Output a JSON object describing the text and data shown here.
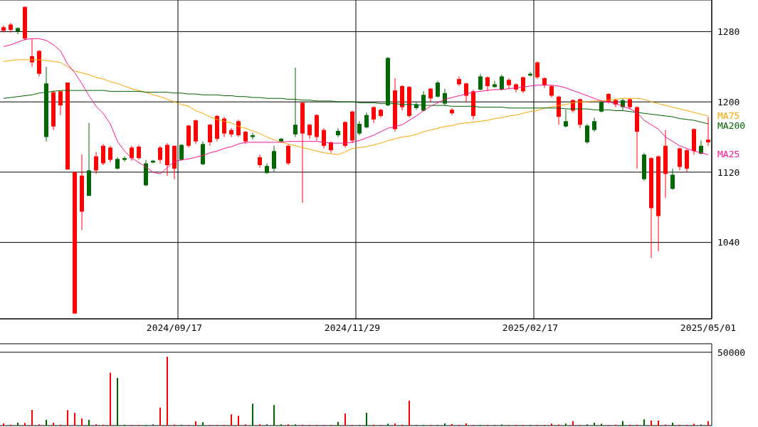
{
  "chart_data": [
    {
      "type": "candlestick",
      "categories": [
        null,
        null,
        null,
        null,
        null,
        null,
        null,
        null,
        null,
        null,
        null,
        null,
        null,
        null,
        null,
        null,
        null,
        null,
        null,
        null,
        null,
        null,
        null,
        null,
        "2024/09/17",
        null,
        null,
        null,
        null,
        null,
        null,
        null,
        null,
        null,
        null,
        null,
        null,
        null,
        null,
        null,
        null,
        null,
        null,
        null,
        null,
        null,
        null,
        null,
        null,
        "2024/11/29",
        null,
        null,
        null,
        null,
        null,
        null,
        null,
        null,
        null,
        null,
        null,
        null,
        null,
        null,
        null,
        null,
        null,
        null,
        null,
        null,
        null,
        null,
        null,
        null,
        "2025/02/17",
        null,
        null,
        null,
        null,
        null,
        null,
        null,
        null,
        null,
        null,
        null,
        null,
        null,
        null,
        null,
        null,
        null,
        null,
        null,
        null,
        null,
        null,
        null,
        null,
        "2025/05/01"
      ],
      "ohlc": [
        [
          1281,
          1287,
          1279,
          1285
        ],
        [
          1282,
          1290,
          1279,
          1288
        ],
        [
          1284,
          1285,
          1277,
          1280
        ],
        [
          1272,
          1309,
          1270,
          1308
        ],
        [
          1245,
          1272,
          1240,
          1252
        ],
        [
          1232,
          1259,
          1229,
          1258
        ],
        [
          1221,
          1240,
          1155,
          1160
        ],
        [
          1172,
          1213,
          1168,
          1211
        ],
        [
          1196,
          1213,
          1185,
          1212
        ],
        [
          1123,
          1222,
          1123,
          1222
        ],
        [
          959,
          1120,
          959,
          1120
        ],
        [
          1075,
          1140,
          1054,
          1116
        ],
        [
          1122,
          1176,
          1093,
          1093
        ],
        [
          1122,
          1143,
          1118,
          1138
        ],
        [
          1130,
          1152,
          1128,
          1150
        ],
        [
          1134,
          1150,
          1131,
          1148
        ],
        [
          1135,
          1137,
          1123,
          1124
        ],
        [
          1136,
          1138,
          1132,
          1134
        ],
        [
          1136,
          1150,
          1133,
          1148
        ],
        [
          1136,
          1151,
          1134,
          1149
        ],
        [
          1130,
          1134,
          1104,
          1105
        ],
        [
          1133,
          1134,
          1130,
          1131
        ],
        [
          1134,
          1150,
          1130,
          1148
        ],
        [
          1128,
          1153,
          1116,
          1151
        ],
        [
          1124,
          1150,
          1112,
          1150
        ],
        [
          1151,
          1152,
          1133,
          1134
        ],
        [
          1150,
          1174,
          1148,
          1173
        ],
        [
          1155,
          1180,
          1152,
          1179
        ],
        [
          1152,
          1155,
          1128,
          1129
        ],
        [
          1154,
          1175,
          1150,
          1174
        ],
        [
          1158,
          1185,
          1155,
          1184
        ],
        [
          1164,
          1183,
          1160,
          1181
        ],
        [
          1163,
          1170,
          1160,
          1168
        ],
        [
          1162,
          1180,
          1160,
          1178
        ],
        [
          1155,
          1167,
          1152,
          1166
        ],
        [
          1162,
          1165,
          1157,
          1160
        ],
        [
          1128,
          1140,
          1125,
          1137
        ],
        [
          1127,
          1130,
          1118,
          1119
        ],
        [
          1144,
          1150,
          1120,
          1124
        ],
        [
          1158,
          1159,
          1154,
          1155
        ],
        [
          1130,
          1152,
          1128,
          1150
        ],
        [
          1174,
          1239,
          1160,
          1163
        ],
        [
          1164,
          1200,
          1085,
          1199
        ],
        [
          1162,
          1175,
          1158,
          1174
        ],
        [
          1160,
          1186,
          1156,
          1185
        ],
        [
          1150,
          1170,
          1147,
          1168
        ],
        [
          1145,
          1155,
          1142,
          1154
        ],
        [
          1167,
          1170,
          1160,
          1162
        ],
        [
          1150,
          1178,
          1148,
          1177
        ],
        [
          1156,
          1190,
          1153,
          1189
        ],
        [
          1175,
          1178,
          1162,
          1164
        ],
        [
          1185,
          1188,
          1170,
          1171
        ],
        [
          1180,
          1195,
          1176,
          1194
        ],
        [
          1184,
          1192,
          1182,
          1191
        ],
        [
          1250,
          1251,
          1195,
          1196
        ],
        [
          1169,
          1227,
          1166,
          1213
        ],
        [
          1194,
          1219,
          1190,
          1218
        ],
        [
          1184,
          1218,
          1182,
          1217
        ],
        [
          1197,
          1200,
          1191,
          1193
        ],
        [
          1208,
          1212,
          1189,
          1190
        ],
        [
          1204,
          1216,
          1200,
          1215
        ],
        [
          1222,
          1224,
          1205,
          1206
        ],
        [
          1210,
          1215,
          1196,
          1198
        ],
        [
          1187,
          1193,
          1185,
          1191
        ],
        [
          1220,
          1229,
          1218,
          1226
        ],
        [
          1207,
          1222,
          1200,
          1221
        ],
        [
          1184,
          1214,
          1180,
          1212
        ],
        [
          1229,
          1232,
          1213,
          1214
        ],
        [
          1218,
          1229,
          1212,
          1228
        ],
        [
          1220,
          1224,
          1216,
          1217
        ],
        [
          1229,
          1231,
          1213,
          1214
        ],
        [
          1219,
          1227,
          1215,
          1225
        ],
        [
          1214,
          1221,
          1211,
          1220
        ],
        [
          1212,
          1229,
          1210,
          1228
        ],
        [
          1232,
          1234,
          1229,
          1230
        ],
        [
          1228,
          1246,
          1226,
          1245
        ],
        [
          1219,
          1228,
          1216,
          1227
        ],
        [
          1207,
          1219,
          1205,
          1218
        ],
        [
          1183,
          1207,
          1174,
          1206
        ],
        [
          1178,
          1191,
          1171,
          1172
        ],
        [
          1190,
          1203,
          1188,
          1202
        ],
        [
          1174,
          1204,
          1170,
          1203
        ],
        [
          1173,
          1175,
          1152,
          1154
        ],
        [
          1178,
          1182,
          1166,
          1168
        ],
        [
          1200,
          1202,
          1188,
          1189
        ],
        [
          1200,
          1210,
          1198,
          1209
        ],
        [
          1197,
          1204,
          1194,
          1202
        ],
        [
          1202,
          1204,
          1190,
          1194
        ],
        [
          1194,
          1204,
          1192,
          1203
        ],
        [
          1166,
          1195,
          1124,
          1194
        ],
        [
          1140,
          1142,
          1110,
          1112
        ],
        [
          1079,
          1137,
          1022,
          1136
        ],
        [
          1070,
          1139,
          1030,
          1138
        ],
        [
          1118,
          1168,
          1091,
          1150
        ],
        [
          1117,
          1124,
          1100,
          1101
        ],
        [
          1126,
          1148,
          1122,
          1147
        ],
        [
          1124,
          1146,
          1120,
          1145
        ],
        [
          1144,
          1170,
          1140,
          1169
        ],
        [
          1150,
          1156,
          1140,
          1141
        ],
        [
          1154,
          1183,
          1150,
          1157
        ]
      ],
      "colors": [
        "#ff0000",
        "#ff0000",
        "#006600",
        "#ff0000",
        "#ff0000",
        "#ff0000",
        "#006600",
        "#ff0000",
        "#ff0000",
        "#ff0000",
        "#ff0000",
        "#ff0000",
        "#006600",
        "#ff0000",
        "#ff0000",
        "#ff0000",
        "#006600",
        "#006600",
        "#ff0000",
        "#ff0000",
        "#006600",
        "#006600",
        "#ff0000",
        "#ff0000",
        "#ff0000",
        "#006600",
        "#ff0000",
        "#ff0000",
        "#006600",
        "#ff0000",
        "#ff0000",
        "#ff0000",
        "#ff0000",
        "#ff0000",
        "#ff0000",
        "#006600",
        "#ff0000",
        "#006600",
        "#006600",
        "#006600",
        "#ff0000",
        "#006600",
        "#ff0000",
        "#ff0000",
        "#ff0000",
        "#ff0000",
        "#ff0000",
        "#006600",
        "#ff0000",
        "#ff0000",
        "#006600",
        "#006600",
        "#ff0000",
        "#ff0000",
        "#006600",
        "#ff0000",
        "#ff0000",
        "#ff0000",
        "#006600",
        "#006600",
        "#ff0000",
        "#006600",
        "#006600",
        "#ff0000",
        "#ff0000",
        "#ff0000",
        "#ff0000",
        "#006600",
        "#ff0000",
        "#006600",
        "#006600",
        "#ff0000",
        "#ff0000",
        "#ff0000",
        "#006600",
        "#ff0000",
        "#ff0000",
        "#ff0000",
        "#ff0000",
        "#006600",
        "#ff0000",
        "#ff0000",
        "#006600",
        "#006600",
        "#006600",
        "#ff0000",
        "#ff0000",
        "#006600",
        "#ff0000",
        "#ff0000",
        "#006600",
        "#ff0000",
        "#ff0000",
        "#ff0000",
        "#006600",
        "#ff0000",
        "#ff0000",
        "#ff0000",
        "#006600",
        "#ff0000"
      ],
      "series": [
        {
          "name": "MA75",
          "type": "line",
          "color": "#ffa500",
          "values": [
            1246,
            1247,
            1248,
            1248,
            1248,
            1248,
            1247,
            1246,
            1245,
            1240,
            1235,
            1233,
            1231,
            1228,
            1226,
            1223,
            1221,
            1218,
            1215,
            1213,
            1211,
            1208,
            1206,
            1203,
            1200,
            1197,
            1195,
            1190,
            1187,
            1183,
            1180,
            1178,
            1176,
            1172,
            1170,
            1167,
            1164,
            1160,
            1157,
            1154,
            1152,
            1150,
            1148,
            1146,
            1144,
            1142,
            1141,
            1140,
            1143,
            1147,
            1148,
            1149,
            1151,
            1153,
            1156,
            1158,
            1160,
            1161,
            1163,
            1166,
            1168,
            1170,
            1172,
            1173,
            1175,
            1176,
            1177,
            1178,
            1179,
            1181,
            1182,
            1184,
            1185,
            1187,
            1189,
            1190,
            1193,
            1194,
            1196,
            1197,
            1199,
            1200,
            1200,
            1201,
            1201,
            1202,
            1203,
            1204,
            1204,
            1204,
            1203,
            1200,
            1198,
            1196,
            1194,
            1192,
            1190,
            1188,
            1186,
            1184
          ]
        },
        {
          "name": "MA200",
          "type": "line",
          "color": "#006600",
          "values": [
            1204,
            1205,
            1206,
            1207,
            1208,
            1210,
            1211,
            1212,
            1213,
            1213,
            1213,
            1213,
            1213,
            1213,
            1213,
            1212,
            1212,
            1212,
            1212,
            1212,
            1211,
            1211,
            1211,
            1211,
            1210,
            1210,
            1209,
            1209,
            1208,
            1208,
            1208,
            1207,
            1207,
            1206,
            1206,
            1205,
            1205,
            1204,
            1204,
            1204,
            1203,
            1203,
            1202,
            1202,
            1201,
            1201,
            1201,
            1200,
            1200,
            1200,
            1199,
            1199,
            1199,
            1198,
            1198,
            1198,
            1197,
            1197,
            1197,
            1196,
            1196,
            1196,
            1196,
            1195,
            1195,
            1195,
            1195,
            1194,
            1194,
            1194,
            1194,
            1193,
            1193,
            1193,
            1193,
            1193,
            1193,
            1193,
            1193,
            1192,
            1192,
            1192,
            1192,
            1191,
            1191,
            1191,
            1190,
            1190,
            1189,
            1188,
            1187,
            1186,
            1185,
            1184,
            1183,
            1181,
            1180,
            1179,
            1177,
            1175
          ]
        },
        {
          "name": "MA25",
          "type": "line",
          "color": "#ff1493",
          "values": [
            1263,
            1265,
            1268,
            1271,
            1272,
            1272,
            1270,
            1265,
            1258,
            1243,
            1233,
            1221,
            1207,
            1195,
            1187,
            1175,
            1155,
            1144,
            1136,
            1131,
            1126,
            1120,
            1118,
            1125,
            1132,
            1134,
            1135,
            1137,
            1139,
            1142,
            1144,
            1147,
            1149,
            1152,
            1154,
            1154,
            1154,
            1154,
            1154,
            1154,
            1155,
            1155,
            1155,
            1155,
            1155,
            1154,
            1153,
            1153,
            1153,
            1154,
            1156,
            1159,
            1162,
            1166,
            1170,
            1172,
            1174,
            1179,
            1184,
            1190,
            1195,
            1199,
            1203,
            1205,
            1207,
            1209,
            1211,
            1212,
            1213,
            1214,
            1214,
            1215,
            1216,
            1217,
            1218,
            1219,
            1219,
            1219,
            1218,
            1216,
            1213,
            1210,
            1207,
            1204,
            1201,
            1200,
            1198,
            1195,
            1192,
            1188,
            1179,
            1174,
            1169,
            1160,
            1155,
            1150,
            1147,
            1144,
            1142,
            1140
          ]
        }
      ],
      "ylim": [
        953,
        1316
      ],
      "yticks": [
        1040,
        1120,
        1200,
        1280
      ],
      "grid": true
    },
    {
      "type": "bar",
      "categories": [
        null,
        null,
        null,
        null,
        null,
        null,
        null,
        null,
        null,
        null,
        null,
        null,
        null,
        null,
        null,
        null,
        null,
        null,
        null,
        null,
        null,
        null,
        null,
        null,
        "2024/09/17",
        null,
        null,
        null,
        null,
        null,
        null,
        null,
        null,
        null,
        null,
        null,
        null,
        null,
        null,
        null,
        null,
        null,
        null,
        null,
        null,
        null,
        null,
        null,
        null,
        "2024/11/29",
        null,
        null,
        null,
        null,
        null,
        null,
        null,
        null,
        null,
        null,
        null,
        null,
        null,
        null,
        null,
        null,
        null,
        null,
        null,
        null,
        null,
        null,
        null,
        null,
        "2025/02/17",
        null,
        null,
        null,
        null,
        null,
        null,
        null,
        null,
        null,
        null,
        null,
        null,
        null,
        null,
        null,
        null,
        null,
        null,
        null,
        null,
        null,
        null,
        null,
        null,
        "2025/05/01"
      ],
      "values": [
        1500,
        600,
        2000,
        1800,
        10700,
        800,
        3900,
        2000,
        600,
        10600,
        8700,
        4900,
        3900,
        900,
        600,
        36000,
        32500,
        600,
        500,
        500,
        500,
        900,
        12200,
        47000,
        700,
        600,
        500,
        2900,
        2300,
        500,
        500,
        500,
        7600,
        6700,
        900,
        14900,
        900,
        900,
        14000,
        900,
        900,
        900,
        600,
        500,
        500,
        500,
        500,
        2500,
        8300,
        500,
        500,
        8700,
        600,
        500,
        1200,
        1300,
        600,
        17000,
        500,
        500,
        500,
        500,
        1500,
        1000,
        500,
        1400,
        500,
        500,
        500,
        500,
        700,
        500,
        500,
        500,
        500,
        500,
        500,
        1300,
        700,
        1300,
        3000,
        500,
        900,
        1900,
        1200,
        500,
        600,
        3000,
        600,
        600,
        4300,
        3400,
        3400,
        700,
        2000,
        600,
        500,
        1200,
        700,
        3000
      ],
      "colors": [
        "#ff0000",
        "#ff0000",
        "#006600",
        "#ff0000",
        "#ff0000",
        "#ff0000",
        "#006600",
        "#ff0000",
        "#ff0000",
        "#ff0000",
        "#ff0000",
        "#ff0000",
        "#006600",
        "#ff0000",
        "#ff0000",
        "#ff0000",
        "#006600",
        "#006600",
        "#ff0000",
        "#ff0000",
        "#006600",
        "#006600",
        "#ff0000",
        "#ff0000",
        "#ff0000",
        "#006600",
        "#ff0000",
        "#ff0000",
        "#006600",
        "#ff0000",
        "#ff0000",
        "#ff0000",
        "#ff0000",
        "#ff0000",
        "#ff0000",
        "#006600",
        "#ff0000",
        "#006600",
        "#006600",
        "#006600",
        "#ff0000",
        "#006600",
        "#ff0000",
        "#ff0000",
        "#ff0000",
        "#ff0000",
        "#ff0000",
        "#006600",
        "#ff0000",
        "#ff0000",
        "#006600",
        "#006600",
        "#ff0000",
        "#ff0000",
        "#006600",
        "#ff0000",
        "#ff0000",
        "#ff0000",
        "#006600",
        "#006600",
        "#ff0000",
        "#006600",
        "#006600",
        "#ff0000",
        "#ff0000",
        "#ff0000",
        "#ff0000",
        "#006600",
        "#ff0000",
        "#006600",
        "#006600",
        "#ff0000",
        "#ff0000",
        "#ff0000",
        "#006600",
        "#ff0000",
        "#ff0000",
        "#ff0000",
        "#ff0000",
        "#006600",
        "#ff0000",
        "#ff0000",
        "#006600",
        "#006600",
        "#006600",
        "#ff0000",
        "#ff0000",
        "#006600",
        "#ff0000",
        "#ff0000",
        "#006600",
        "#ff0000",
        "#ff0000",
        "#ff0000",
        "#006600",
        "#ff0000",
        "#ff0000",
        "#ff0000",
        "#006600",
        "#ff0000"
      ],
      "ylim": [
        0,
        55800
      ],
      "yticks": [
        {
          "value": 0,
          "label": null
        },
        50000
      ],
      "grid": "y",
      "tick_labels": "y"
    }
  ]
}
